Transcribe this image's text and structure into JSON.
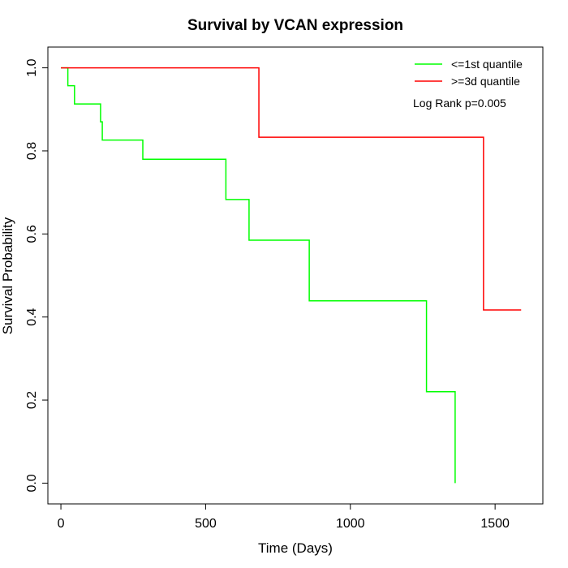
{
  "chart_data": {
    "type": "line",
    "title": "Survival by VCAN expression",
    "xlabel": "Time (Days)",
    "ylabel": "Survival Probability",
    "xlim": [
      -45,
      1665
    ],
    "ylim": [
      -0.05,
      1.05
    ],
    "xticks": [
      0,
      500,
      1000,
      1500
    ],
    "yticks": [
      0.0,
      0.2,
      0.4,
      0.6,
      0.8,
      1.0
    ],
    "xtick_labels": [
      "0",
      "500",
      "1000",
      "1500"
    ],
    "ytick_labels": [
      "0.0",
      "0.2",
      "0.4",
      "0.6",
      "0.8",
      "1.0"
    ],
    "grid": false,
    "legend_position": "top-right",
    "annotation": "Log Rank p=0.005",
    "series": [
      {
        "name": "<=1st quantile",
        "color": "#00ff00",
        "step_x": [
          0,
          24,
          47,
          137,
          143,
          283,
          570,
          650,
          858,
          1263,
          1362
        ],
        "step_y": [
          1.0,
          0.957,
          0.913,
          0.87,
          0.826,
          0.78,
          0.683,
          0.585,
          0.439,
          0.22,
          0.0
        ]
      },
      {
        "name": ">=3d quantile",
        "color": "#ff0000",
        "step_x": [
          0,
          684,
          1460
        ],
        "step_y": [
          1.0,
          0.833,
          0.417
        ],
        "end_x": 1590
      }
    ]
  }
}
